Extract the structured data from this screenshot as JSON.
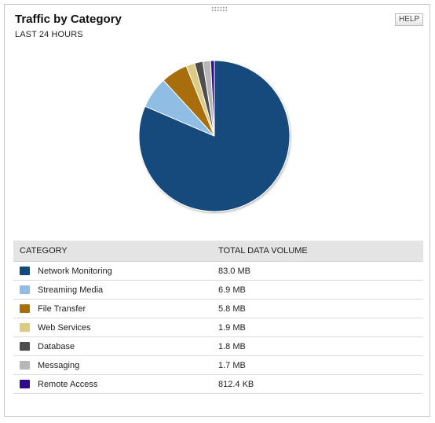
{
  "widget": {
    "title": "Traffic by Category",
    "subtitle": "LAST 24 HOURS",
    "help_label": "HELP"
  },
  "table": {
    "headers": {
      "category": "CATEGORY",
      "volume": "TOTAL DATA VOLUME"
    },
    "rows": [
      {
        "category": "Network Monitoring",
        "volume": "83.0 MB",
        "color": "#124a7c"
      },
      {
        "category": "Streaming Media",
        "volume": "6.9 MB",
        "color": "#8fbde3"
      },
      {
        "category": "File Transfer",
        "volume": "5.8 MB",
        "color": "#a86e0a"
      },
      {
        "category": "Web Services",
        "volume": "1.9 MB",
        "color": "#dccb82"
      },
      {
        "category": "Database",
        "volume": "1.8 MB",
        "color": "#4d4d4d"
      },
      {
        "category": "Messaging",
        "volume": "1.7 MB",
        "color": "#b7b7b7"
      },
      {
        "category": "Remote Access",
        "volume": "812.4 KB",
        "color": "#2e0a8e"
      }
    ]
  },
  "chart_data": {
    "type": "pie",
    "title": "Traffic by Category",
    "categories": [
      "Network Monitoring",
      "Streaming Media",
      "File Transfer",
      "Web Services",
      "Database",
      "Messaging",
      "Remote Access"
    ],
    "values": [
      83.0,
      6.9,
      5.8,
      1.9,
      1.8,
      1.7,
      0.8124
    ],
    "unit": "MB",
    "colors": [
      "#124a7c",
      "#8fbde3",
      "#a86e0a",
      "#dccb82",
      "#4d4d4d",
      "#b7b7b7",
      "#2e0a8e"
    ],
    "start_angle": "12 o'clock",
    "direction": "clockwise"
  }
}
